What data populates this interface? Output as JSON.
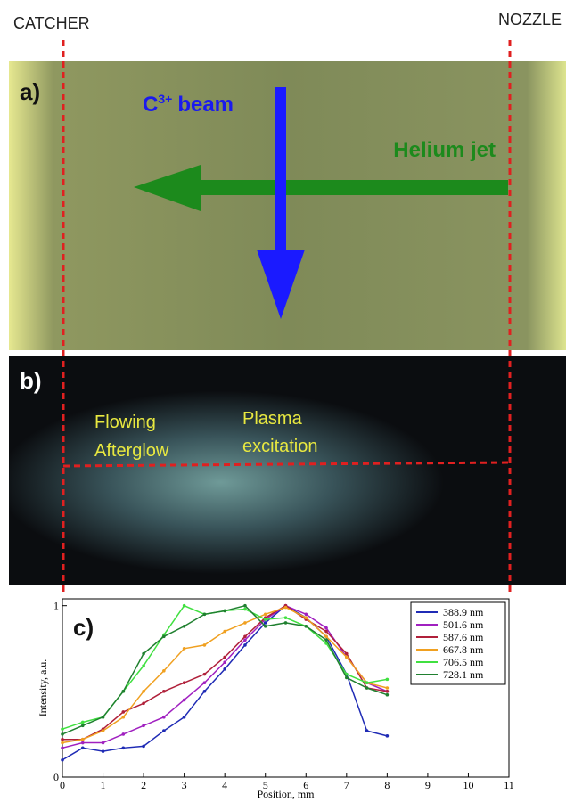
{
  "labels": {
    "left": "CATCHER",
    "right": "NOZZLE"
  },
  "panel_a": {
    "label": "a)",
    "beam": {
      "base": "C",
      "sup": "3+",
      "rest": "beam"
    },
    "jet": "Helium jet"
  },
  "panel_b": {
    "label": "b)",
    "afterglow": [
      "Flowing",
      "Afterglow"
    ],
    "plasma": [
      "Plasma",
      "excitation"
    ]
  },
  "chart_data": {
    "type": "line",
    "panel_label": "c)",
    "x_label": "Position, mm",
    "y_label": "Intensity, a.u.",
    "x": [
      0,
      0.5,
      1,
      1.5,
      2,
      2.5,
      3,
      3.5,
      4,
      4.5,
      5,
      5.5,
      6,
      6.5,
      7,
      7.5,
      8
    ],
    "xlim": [
      0,
      11
    ],
    "xticks": [
      0,
      1,
      2,
      3,
      4,
      5,
      6,
      7,
      8,
      9,
      10,
      11
    ],
    "ylim": [
      0,
      1.04
    ],
    "yticks": [
      0,
      1
    ],
    "legend": "upper right",
    "series": [
      {
        "name": "388.9 nm",
        "color": "#1f2bb5",
        "values": [
          0.1,
          0.17,
          0.15,
          0.17,
          0.18,
          0.27,
          0.35,
          0.5,
          0.63,
          0.77,
          0.9,
          1.0,
          0.93,
          0.82,
          0.6,
          0.27,
          0.24
        ]
      },
      {
        "name": "501.6 nm",
        "color": "#a020c0",
        "values": [
          0.17,
          0.2,
          0.2,
          0.25,
          0.3,
          0.35,
          0.45,
          0.55,
          0.67,
          0.8,
          0.92,
          1.0,
          0.95,
          0.87,
          0.7,
          0.55,
          0.5
        ]
      },
      {
        "name": "587.6 nm",
        "color": "#b0203a",
        "values": [
          0.22,
          0.22,
          0.28,
          0.38,
          0.43,
          0.5,
          0.55,
          0.6,
          0.7,
          0.82,
          0.93,
          1.0,
          0.92,
          0.85,
          0.72,
          0.52,
          0.5
        ]
      },
      {
        "name": "667.8 nm",
        "color": "#f0a020",
        "values": [
          0.2,
          0.22,
          0.27,
          0.35,
          0.5,
          0.62,
          0.75,
          0.77,
          0.85,
          0.9,
          0.95,
          0.99,
          0.93,
          0.82,
          0.7,
          0.55,
          0.52
        ]
      },
      {
        "name": "706.5 nm",
        "color": "#40e040",
        "values": [
          0.28,
          0.32,
          0.35,
          0.5,
          0.65,
          0.83,
          1.0,
          0.95,
          0.97,
          0.98,
          0.92,
          0.93,
          0.88,
          0.78,
          0.6,
          0.55,
          0.57
        ]
      },
      {
        "name": "728.1 nm",
        "color": "#208030",
        "values": [
          0.25,
          0.3,
          0.35,
          0.5,
          0.72,
          0.82,
          0.88,
          0.95,
          0.97,
          1.0,
          0.88,
          0.9,
          0.88,
          0.8,
          0.58,
          0.52,
          0.48
        ]
      }
    ]
  }
}
